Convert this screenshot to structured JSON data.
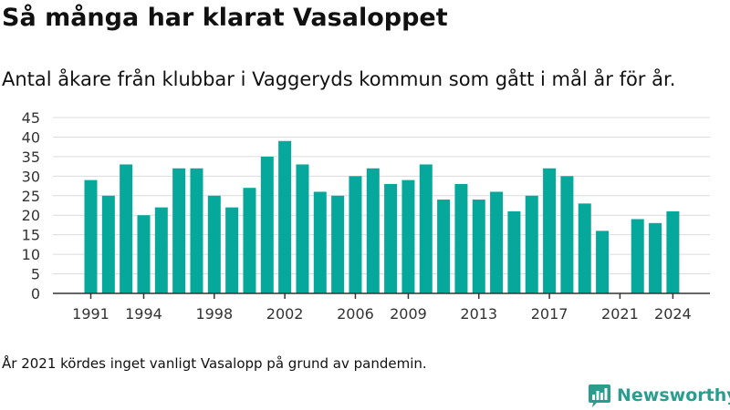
{
  "title": "Så många har klarat Vasaloppet",
  "subtitle": "Antal åkare från klubbar i Vaggeryds kommun som gått i mål år för år.",
  "footnote": "År 2021 kördes inget vanligt Vasalopp på grund av pandemin.",
  "brand": {
    "name": "Newsworthy",
    "color": "#2a9d8f",
    "icon": "newsworthy-logo-icon"
  },
  "chart_data": {
    "type": "bar",
    "categories": [
      1991,
      1992,
      1993,
      1994,
      1995,
      1996,
      1997,
      1998,
      1999,
      2000,
      2001,
      2002,
      2003,
      2004,
      2005,
      2006,
      2007,
      2008,
      2009,
      2010,
      2011,
      2012,
      2013,
      2014,
      2015,
      2016,
      2017,
      2018,
      2019,
      2020,
      2021,
      2022,
      2023,
      2024
    ],
    "values": [
      29,
      25,
      33,
      20,
      22,
      32,
      32,
      25,
      22,
      27,
      35,
      39,
      33,
      26,
      25,
      30,
      32,
      28,
      29,
      33,
      24,
      28,
      24,
      26,
      21,
      25,
      32,
      30,
      23,
      16,
      null,
      19,
      18,
      21
    ],
    "x_tick_labels": [
      "1991",
      "1994",
      "1998",
      "2002",
      "2006",
      "2009",
      "2013",
      "2017",
      "2021",
      "2024"
    ],
    "y_tick_labels": [
      "0",
      "5",
      "10",
      "15",
      "20",
      "25",
      "30",
      "35",
      "40",
      "45"
    ],
    "ylim": [
      0,
      45
    ],
    "bar_color": "#05a89b",
    "grid": true,
    "xlabel": "",
    "ylabel": ""
  }
}
